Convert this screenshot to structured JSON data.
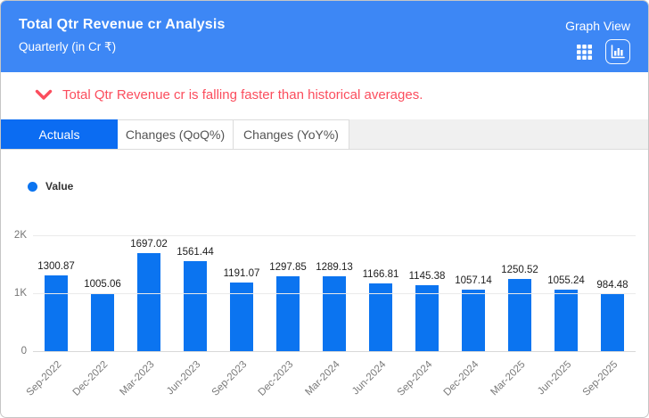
{
  "header": {
    "title": "Total Qtr Revenue cr Analysis",
    "subtitle": "Quarterly (in Cr ₹)",
    "view_label": "Graph View",
    "background_color": "#3d87f5",
    "icons": [
      "table-view-icon",
      "bar-graph-icon"
    ],
    "active_view": "graph"
  },
  "alert": {
    "icon": "chevron-down-icon",
    "text": "Total Qtr Revenue cr is falling faster than historical averages.",
    "color": "#fb4d5d"
  },
  "tabs": [
    {
      "label": "Actuals",
      "active": true
    },
    {
      "label": "Changes (QoQ%)",
      "active": false
    },
    {
      "label": "Changes (YoY%)",
      "active": false
    }
  ],
  "legend": {
    "label": "Value",
    "color": "#0b74f0"
  },
  "chart_data": {
    "type": "bar",
    "title": "Total Qtr Revenue cr Analysis",
    "subtitle": "Quarterly (in Cr ₹)",
    "categories": [
      "Sep-2022",
      "Dec-2022",
      "Mar-2023",
      "Jun-2023",
      "Sep-2023",
      "Dec-2023",
      "Mar-2024",
      "Jun-2024",
      "Sep-2024",
      "Dec-2024",
      "Mar-2025",
      "Jun-2025",
      "Sep-2025"
    ],
    "values": [
      1300.87,
      1005.06,
      1697.02,
      1561.44,
      1191.07,
      1297.85,
      1289.13,
      1166.81,
      1145.38,
      1057.14,
      1250.52,
      1055.24,
      984.48
    ],
    "series_name": "Value",
    "xlabel": "",
    "ylabel": "",
    "ylim": [
      0,
      2000
    ],
    "yticks": [
      {
        "label": "2K",
        "value": 2000
      },
      {
        "label": "1K",
        "value": 1000
      },
      {
        "label": "0",
        "value": 0
      }
    ],
    "bar_color": "#0b74f0",
    "grid": true,
    "value_labels_shown": true,
    "legend_position": "top-left"
  }
}
